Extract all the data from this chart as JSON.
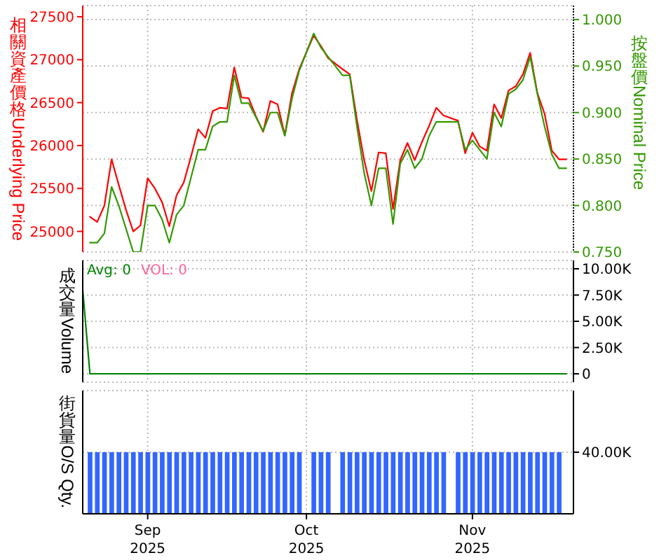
{
  "chart_data": [
    {
      "type": "line",
      "ylabel": "相關資產價格Underlying Price",
      "y2label": "按盤價Nominal Price",
      "categories": [
        null,
        null,
        null,
        null,
        null,
        null,
        null,
        null,
        null,
        null,
        null,
        null,
        null,
        null,
        null,
        null,
        null,
        null,
        null,
        null,
        null,
        null,
        null,
        null,
        null,
        null,
        null,
        null,
        null,
        null,
        null,
        null,
        null,
        null,
        null,
        null,
        null,
        null,
        null,
        null,
        null,
        null,
        null,
        null,
        null,
        null,
        null,
        null,
        null,
        null,
        null,
        null,
        null,
        null,
        null,
        null,
        null,
        null,
        null,
        null,
        null,
        null,
        null,
        null,
        null,
        null,
        null,
        null,
        null
      ],
      "series": [
        {
          "color": "#ff0000",
          "values": [
            null,
            25170,
            25110,
            25300,
            25840,
            25540,
            25250,
            25000,
            25070,
            25620,
            25500,
            25340,
            25060,
            25420,
            25570,
            25870,
            26190,
            26090,
            26400,
            26440,
            26430,
            26910,
            26560,
            26550,
            26340,
            26160,
            26520,
            26480,
            26120,
            26610,
            26890,
            null,
            27280,
            27160,
            27020,
            null,
            26890,
            26830,
            26300,
            25830,
            25470,
            25920,
            25910,
            25260,
            25830,
            26030,
            25830,
            26040,
            26230,
            26440,
            26350,
            null,
            26290,
            25910,
            26150,
            25990,
            25940,
            26480,
            26320,
            26640,
            26690,
            26830,
            27080,
            26610,
            26370,
            25940,
            25840,
            25840,
            null
          ]
        },
        {
          "color": "#339900",
          "axis": "y2",
          "values": [
            null,
            0.76,
            0.76,
            0.77,
            0.82,
            0.8,
            0.775,
            0.75,
            0.75,
            0.8,
            0.8,
            0.785,
            0.76,
            0.79,
            0.8,
            0.83,
            0.86,
            0.86,
            0.885,
            0.89,
            0.89,
            0.94,
            0.91,
            0.91,
            0.895,
            0.88,
            0.9,
            0.9,
            0.875,
            0.915,
            0.945,
            null,
            0.985,
            0.97,
            0.96,
            null,
            0.94,
            0.94,
            0.885,
            0.835,
            0.8,
            0.84,
            0.84,
            0.78,
            0.845,
            0.86,
            0.84,
            0.85,
            0.875,
            0.89,
            0.89,
            null,
            0.89,
            0.86,
            0.87,
            0.86,
            0.85,
            0.9,
            0.885,
            0.92,
            0.925,
            0.935,
            0.96,
            0.92,
            0.885,
            0.855,
            0.84,
            0.84,
            null
          ]
        }
      ],
      "ylim": [
        24760,
        27630
      ],
      "yticks": [
        25000,
        25500,
        26000,
        26500,
        27000,
        27500
      ],
      "y2lim": [
        0.75,
        1.015
      ],
      "y2ticks": [
        {
          "value": 0.75,
          "label": "0.750"
        },
        {
          "value": 0.8,
          "label": "0.800"
        },
        {
          "value": 0.85,
          "label": "0.850"
        },
        {
          "value": 0.9,
          "label": "0.900"
        },
        {
          "value": 0.95,
          "label": "0.950"
        },
        {
          "value": 1,
          "label": "1.000"
        }
      ],
      "grid": true,
      "tick_labels": "y"
    },
    {
      "type": "line",
      "ylabel": "成交量Volume",
      "categories": [
        null,
        null,
        null,
        null,
        null,
        null,
        null,
        null,
        null,
        null,
        null,
        null,
        null,
        null,
        null,
        null,
        null,
        null,
        null,
        null,
        null,
        null,
        null,
        null,
        null,
        null,
        null,
        null,
        null,
        null,
        null,
        null,
        null,
        null,
        null,
        null,
        null,
        null,
        null,
        null,
        null,
        null,
        null,
        null,
        null,
        null,
        null,
        null,
        null,
        null,
        null,
        null,
        null,
        null,
        null,
        null,
        null,
        null,
        null,
        null,
        null,
        null,
        null,
        null,
        null,
        null,
        null,
        null,
        null
      ],
      "series": [
        {
          "name": "Avg: 0",
          "color": "#008000",
          "values": [
            8000,
            0,
            0,
            0,
            0,
            0,
            0,
            0,
            0,
            0,
            0,
            0,
            0,
            0,
            0,
            0,
            0,
            0,
            0,
            0,
            0,
            0,
            0,
            0,
            0,
            0,
            0,
            0,
            0,
            0,
            0,
            null,
            0,
            0,
            0,
            null,
            0,
            0,
            0,
            0,
            0,
            0,
            0,
            0,
            0,
            0,
            0,
            0,
            0,
            0,
            0,
            null,
            0,
            0,
            0,
            0,
            0,
            0,
            0,
            0,
            0,
            0,
            0,
            0,
            0,
            0,
            0,
            0,
            null
          ]
        }
      ],
      "annotations": [
        "VOL: 0"
      ],
      "ylim": [
        -800,
        10800
      ],
      "yticks": [
        0,
        {
          "value": 2500,
          "label": "2.50K"
        },
        {
          "value": 5000,
          "label": "5.00K"
        },
        {
          "value": 7500,
          "label": "7.50K"
        },
        {
          "value": 10000,
          "label": "10.00K"
        }
      ],
      "grid": true,
      "legend": "top left",
      "tick_labels": "y"
    },
    {
      "type": "bar",
      "ylabel": "街貨量O/S Qty.",
      "categories": [
        null,
        null,
        null,
        null,
        null,
        null,
        null,
        null,
        null,
        "Sep\n2025",
        null,
        null,
        null,
        null,
        null,
        null,
        null,
        null,
        null,
        null,
        null,
        null,
        null,
        null,
        null,
        null,
        null,
        null,
        null,
        null,
        null,
        "Oct\n2025",
        null,
        null,
        null,
        null,
        null,
        null,
        null,
        null,
        null,
        null,
        null,
        null,
        null,
        null,
        null,
        null,
        null,
        null,
        null,
        null,
        null,
        null,
        "Nov\n2025",
        null,
        null,
        null,
        null,
        null,
        null,
        null,
        null,
        null,
        null,
        null,
        null,
        null,
        null
      ],
      "color": "#3366ff",
      "values": [
        null,
        40000,
        40000,
        40000,
        40000,
        40000,
        40000,
        40000,
        40000,
        40000,
        40000,
        40000,
        40000,
        40000,
        40000,
        40000,
        40000,
        40000,
        40000,
        40000,
        40000,
        40000,
        40000,
        40000,
        40000,
        40000,
        40000,
        40000,
        40000,
        40000,
        40000,
        null,
        40000,
        40000,
        40000,
        null,
        40000,
        40000,
        40000,
        40000,
        40000,
        40000,
        40000,
        40000,
        40000,
        40000,
        40000,
        40000,
        40000,
        40000,
        40000,
        null,
        40000,
        40000,
        40000,
        40000,
        40000,
        40000,
        40000,
        40000,
        40000,
        40000,
        40000,
        40000,
        40000,
        40000,
        40000,
        null,
        null
      ],
      "ylim": [
        0,
        80000
      ],
      "yticks": [
        {
          "value": 40000,
          "label": "40.00K"
        }
      ],
      "grid": true
    }
  ]
}
